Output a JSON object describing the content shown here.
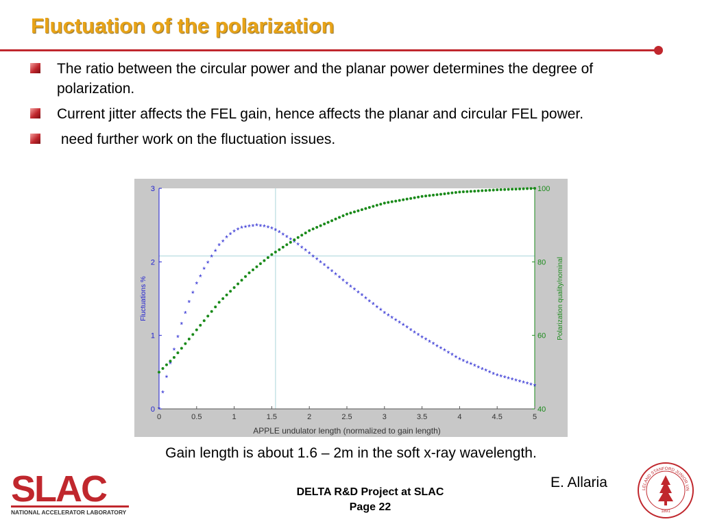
{
  "slide": {
    "title": "Fluctuation of the polarization",
    "bullets": [
      "The ratio between the circular power and the planar power determines the degree of polarization.",
      "Current jitter affects the FEL gain, hence affects the planar and circular FEL power.",
      " need further work on the fluctuation issues."
    ],
    "caption": "Gain length is about 1.6 – 2m in the soft x-ray wavelength.",
    "author": "E. Allaria",
    "footer_line1": "DELTA R&D Project at SLAC",
    "footer_line2": "Page 22",
    "logo": {
      "text": "SLAC",
      "subtext": "NATIONAL ACCELERATOR LABORATORY"
    },
    "seal": {
      "text": "LELAND STANFORD JUNIOR UNIVERSITY",
      "year": "1891"
    }
  },
  "colors": {
    "title": "#e8a317",
    "accent": "#c0272d",
    "series_fluct": "#1c1ccf",
    "series_pol": "#1a8a1a"
  },
  "chart_data": {
    "type": "scatter",
    "xlabel": "APPLE undulator length (normalized to gain length)",
    "ylabel_left": "Fluctuations %",
    "ylabel_right": "Polarization quality/nominal",
    "xlim": [
      0,
      5
    ],
    "ylim_left": [
      0,
      3
    ],
    "ylim_right": [
      40,
      100
    ],
    "x_ticks": [
      "0",
      "0.5",
      "1",
      "1.5",
      "2",
      "2.5",
      "3",
      "3.5",
      "4",
      "4.5",
      "5"
    ],
    "y_left_ticks": [
      "0",
      "1",
      "2",
      "3"
    ],
    "y_right_ticks": [
      "40",
      "60",
      "80",
      "100"
    ],
    "reference_lines": {
      "x": 1.55,
      "y_left": 2.08
    },
    "series": [
      {
        "axis": "left",
        "marker": "*",
        "values": [
          [
            0,
            0
          ],
          [
            0.05,
            0.22
          ],
          [
            0.1,
            0.43
          ],
          [
            0.2,
            0.8
          ],
          [
            0.3,
            1.15
          ],
          [
            0.4,
            1.45
          ],
          [
            0.5,
            1.7
          ],
          [
            0.6,
            1.9
          ],
          [
            0.7,
            2.07
          ],
          [
            0.8,
            2.22
          ],
          [
            0.9,
            2.33
          ],
          [
            1.0,
            2.41
          ],
          [
            1.1,
            2.46
          ],
          [
            1.2,
            2.48
          ],
          [
            1.3,
            2.49
          ],
          [
            1.4,
            2.48
          ],
          [
            1.5,
            2.45
          ],
          [
            1.6,
            2.4
          ],
          [
            1.8,
            2.27
          ],
          [
            2.0,
            2.11
          ],
          [
            2.2,
            1.95
          ],
          [
            2.5,
            1.7
          ],
          [
            3.0,
            1.3
          ],
          [
            3.5,
            0.97
          ],
          [
            4.0,
            0.67
          ],
          [
            4.5,
            0.45
          ],
          [
            5.0,
            0.31
          ]
        ]
      },
      {
        "axis": "right",
        "marker": "o",
        "values": [
          [
            0,
            50
          ],
          [
            0.2,
            54
          ],
          [
            0.4,
            59
          ],
          [
            0.6,
            64
          ],
          [
            0.8,
            69
          ],
          [
            1.0,
            73
          ],
          [
            1.2,
            77
          ],
          [
            1.5,
            82
          ],
          [
            1.8,
            86
          ],
          [
            2.0,
            88.5
          ],
          [
            2.5,
            93
          ],
          [
            3.0,
            96
          ],
          [
            3.5,
            97.8
          ],
          [
            4.0,
            99
          ],
          [
            4.5,
            99.6
          ],
          [
            5.0,
            100
          ]
        ]
      }
    ]
  }
}
